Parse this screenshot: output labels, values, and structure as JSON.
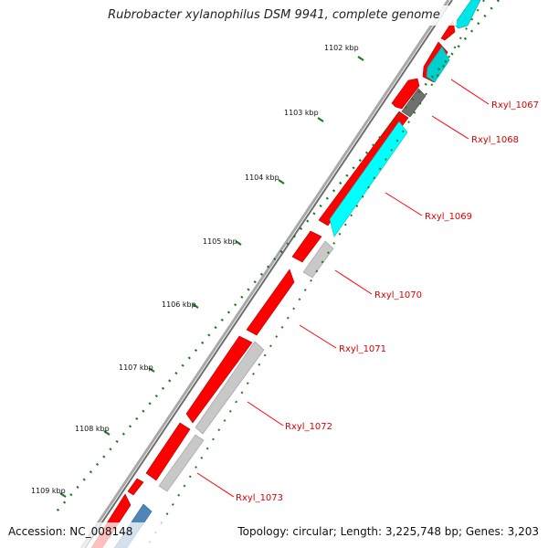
{
  "title": "Rubrobacter xylanophilus DSM 9941, complete genome",
  "footer": {
    "accession": "Accession: NC_008148",
    "topology": "Topology: circular; Length: 3,225,748 bp; Genes: 3,203"
  },
  "colors": {
    "forward_gene": "#ff0000",
    "reverse_gene": "#c8c8c8",
    "reverse_gene_alt": "#00e6e6",
    "reverse_gene_dark": "#707070",
    "reverse_gene_blue": "#4f86b8",
    "backbone": "#666666",
    "tick_dot": "#1a7a1a",
    "label": "#dd0000"
  },
  "kbp_ticks": [
    "1102 kbp",
    "1103 kbp",
    "1104 kbp",
    "1105 kbp",
    "1106 kbp",
    "1107 kbp",
    "1108 kbp",
    "1109 kbp"
  ],
  "gene_labels": [
    "Rxyl_1067",
    "Rxyl_1068",
    "Rxyl_1069",
    "Rxyl_1070",
    "Rxyl_1071",
    "Rxyl_1072",
    "Rxyl_1073"
  ]
}
